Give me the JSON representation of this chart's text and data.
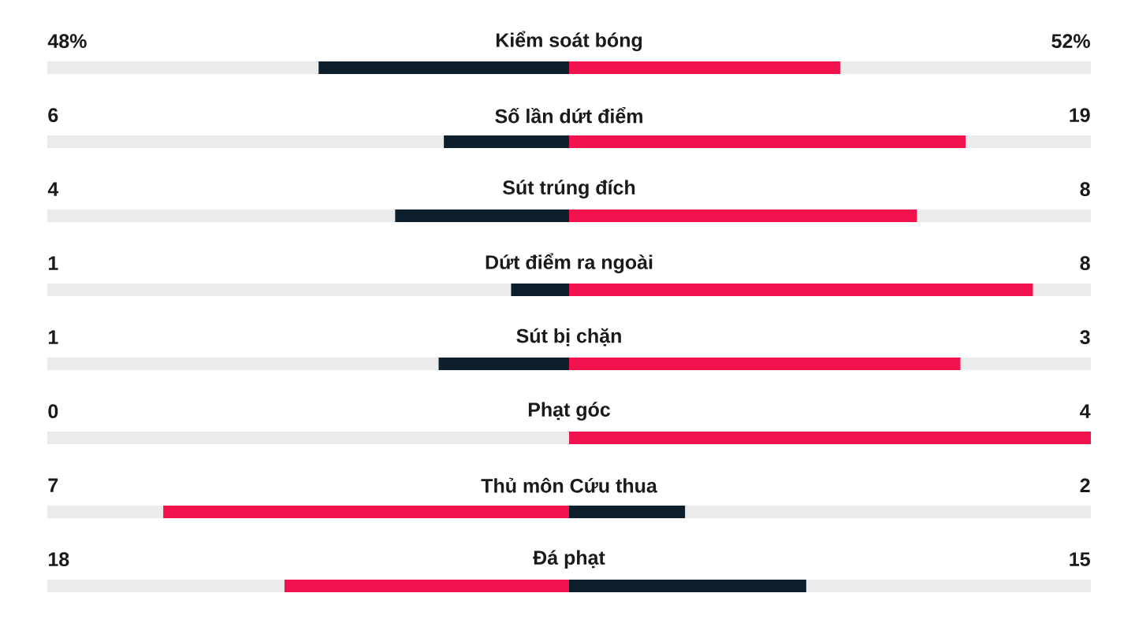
{
  "chart_data": {
    "type": "other",
    "categories": [
      "Kiểm soát bóng",
      "Số lần dứt điểm",
      "Sút trúng đích",
      "Dứt điểm ra ngoài",
      "Sút bị chặn",
      "Phạt góc",
      "Thủ môn Cứu thua",
      "Đá phạt"
    ],
    "series": [
      {
        "values": [
          48,
          6,
          4,
          1,
          1,
          0,
          7,
          18
        ],
        "value_labels": [
          "48%",
          "6",
          "4",
          "1",
          "1",
          "0",
          "7",
          "18"
        ],
        "colors": [
          "#0d1f2d",
          "#0d1f2d",
          "#0d1f2d",
          "#0d1f2d",
          "#0d1f2d",
          "#0d1f2d",
          "#f0134d",
          "#f0134d"
        ]
      },
      {
        "values": [
          52,
          19,
          8,
          8,
          3,
          4,
          2,
          15
        ],
        "value_labels": [
          "52%",
          "19",
          "8",
          "8",
          "3",
          "4",
          "2",
          "15"
        ],
        "colors": [
          "#f0134d",
          "#f0134d",
          "#f0134d",
          "#f0134d",
          "#f0134d",
          "#f0134d",
          "#0d1f2d",
          "#0d1f2d"
        ]
      }
    ]
  }
}
